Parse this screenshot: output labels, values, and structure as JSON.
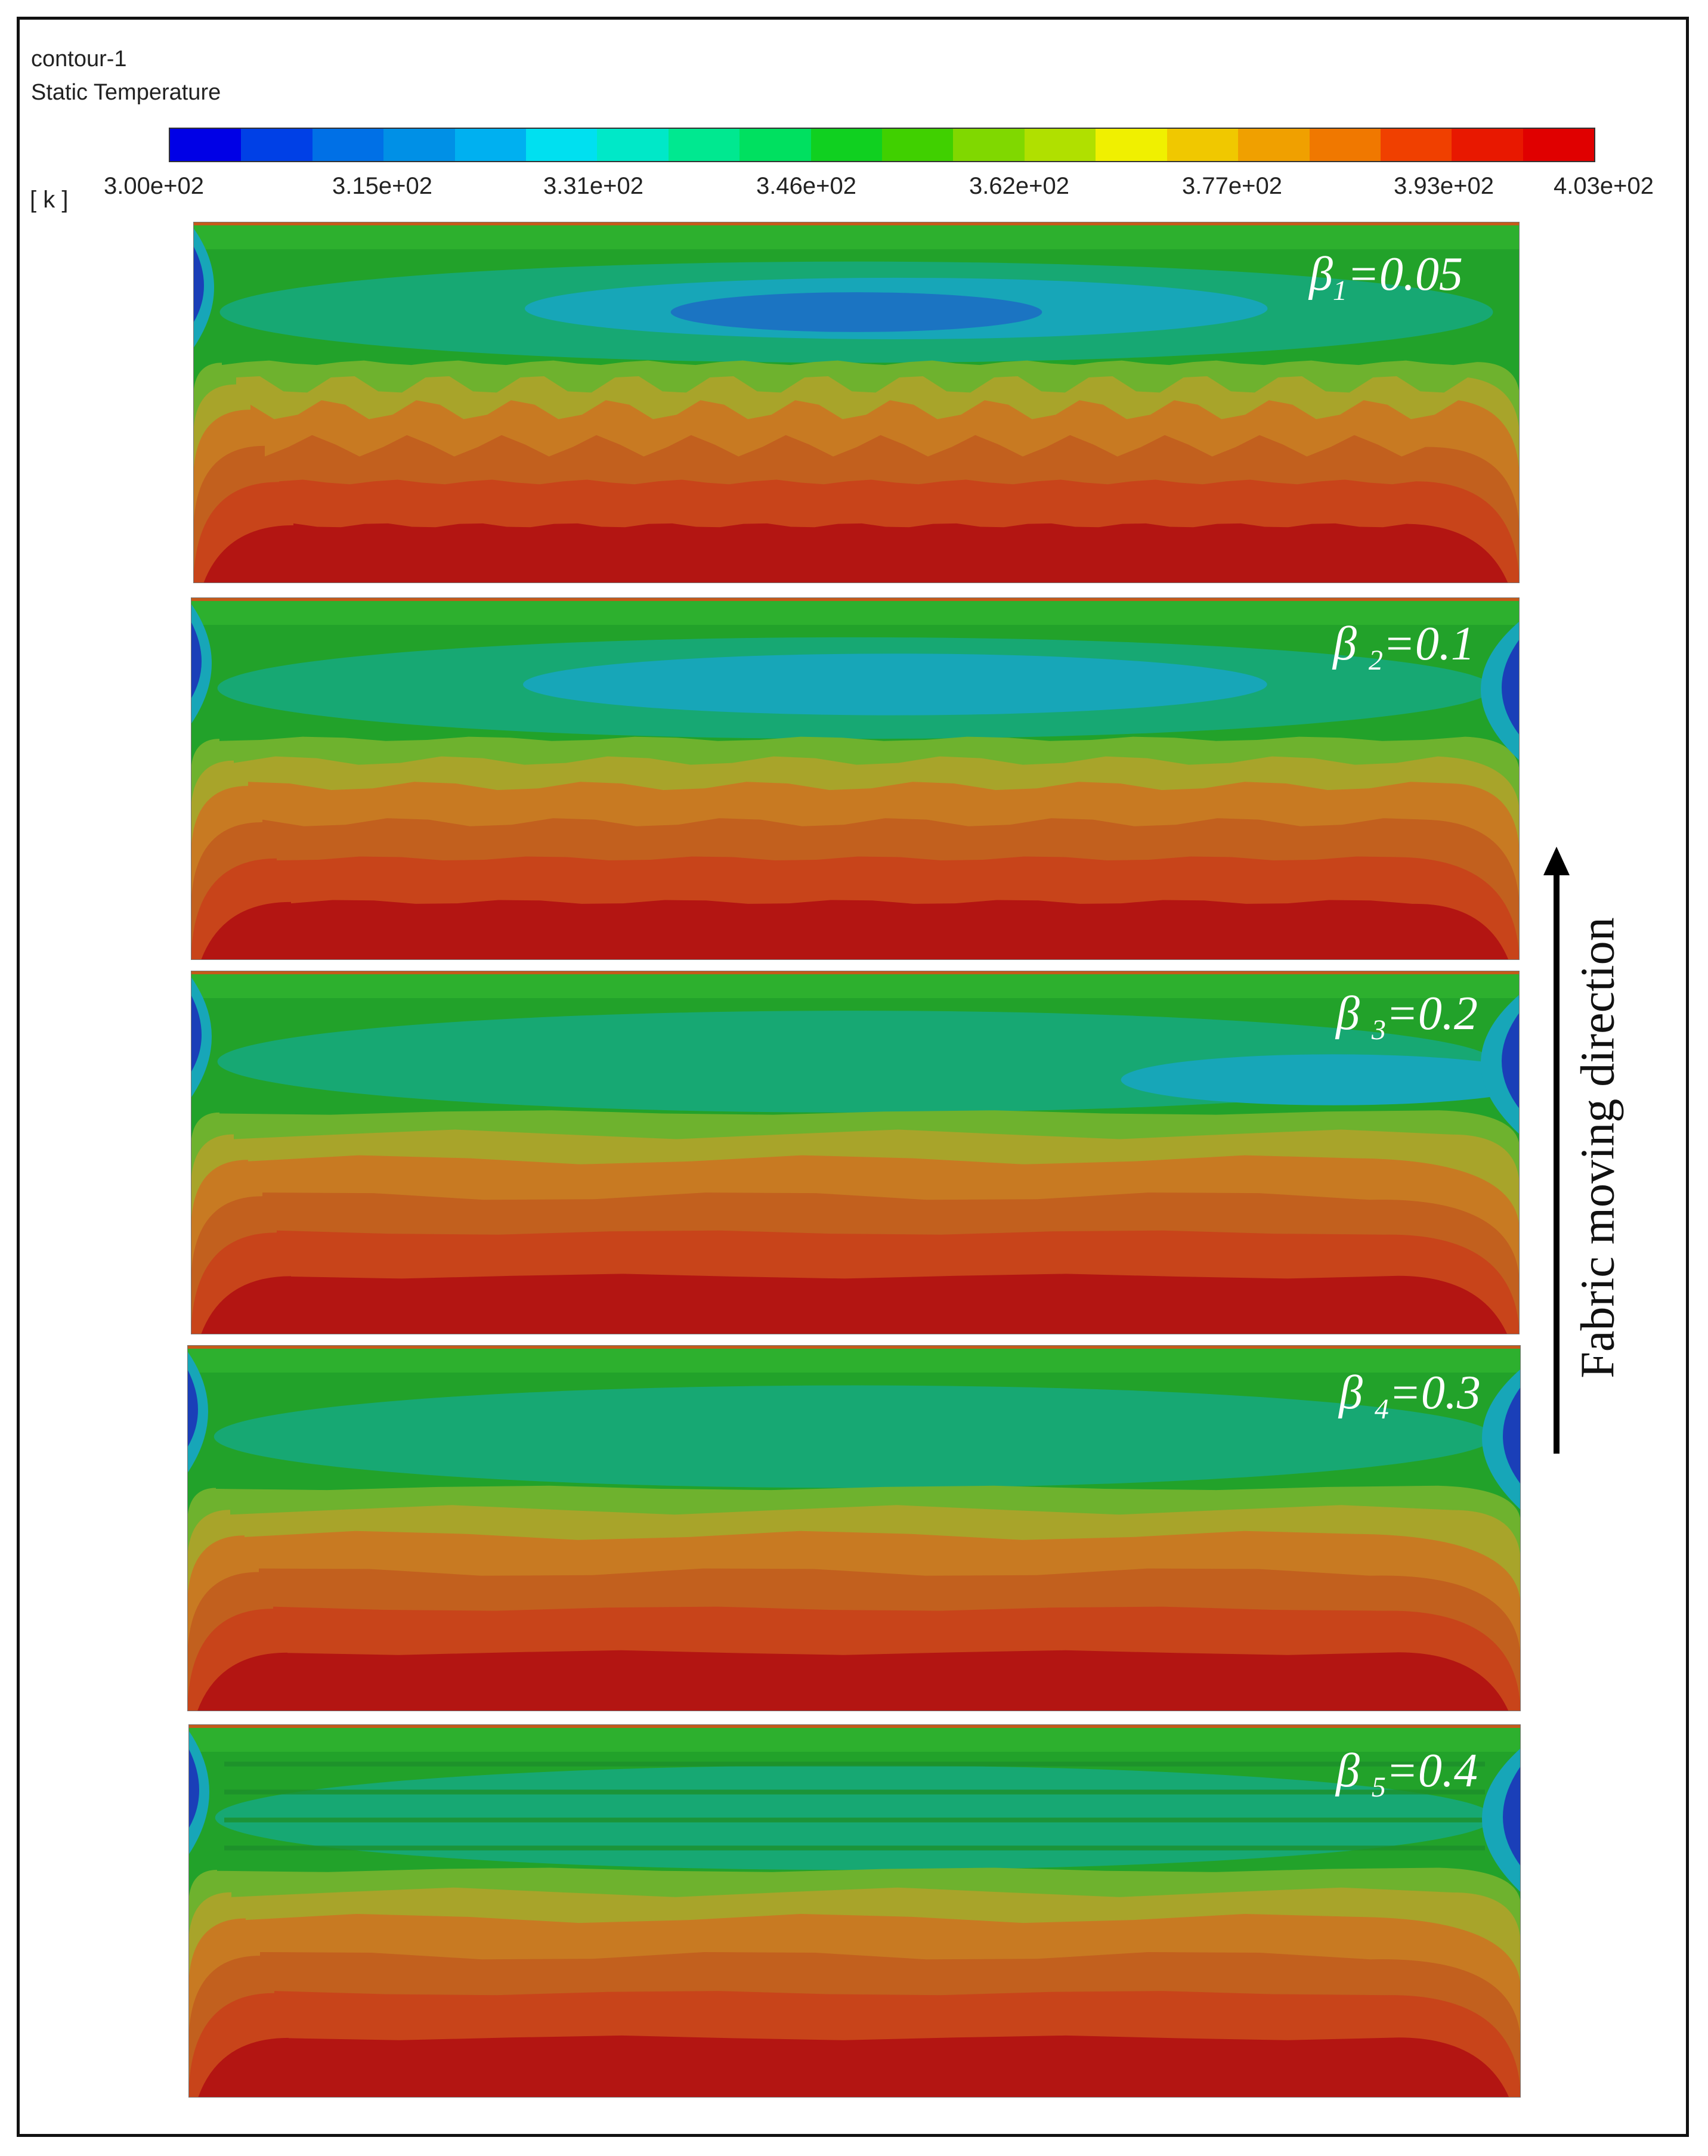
{
  "legend": {
    "title": "contour-1",
    "subtitle": "Static Temperature",
    "unit": "[ k ]",
    "ticks": [
      "3.00e+02",
      "3.15e+02",
      "3.31e+02",
      "3.46e+02",
      "3.62e+02",
      "3.77e+02",
      "3.93e+02",
      "4.03e+02"
    ],
    "range": [
      300,
      403
    ],
    "levels": 20,
    "colors": [
      "#0000e6",
      "#0040e6",
      "#0070e6",
      "#0090e6",
      "#00b0f0",
      "#00e0f0",
      "#00e8c8",
      "#00e890",
      "#00e060",
      "#10d020",
      "#40d000",
      "#80d800",
      "#b0e000",
      "#f0f000",
      "#f0c800",
      "#f0a000",
      "#f07800",
      "#f04000",
      "#e81800",
      "#e00000"
    ]
  },
  "panels": [
    {
      "label_greek": "β",
      "label_sub": "1",
      "label_value": "=0.05",
      "beta": 0.05
    },
    {
      "label_greek": "β ",
      "label_sub": "2",
      "label_value": "=0.1",
      "beta": 0.1
    },
    {
      "label_greek": "β ",
      "label_sub": "3",
      "label_value": "=0.2",
      "beta": 0.2
    },
    {
      "label_greek": "β ",
      "label_sub": "4",
      "label_value": "=0.3",
      "beta": 0.3
    },
    {
      "label_greek": "β ",
      "label_sub": "5",
      "label_value": "=0.4",
      "beta": 0.4
    }
  ],
  "direction_label": "Fabric moving direction",
  "colors": {
    "red": "#b31512",
    "orange_red": "#c8441a",
    "orange": "#c87a22",
    "yellow_green": "#a8a42a",
    "light_green": "#6eb22e",
    "green": "#22a22a",
    "teal": "#14a98c",
    "cyan": "#17a6b8",
    "blue": "#1b74c2",
    "dark_blue": "#1a3fb8"
  }
}
